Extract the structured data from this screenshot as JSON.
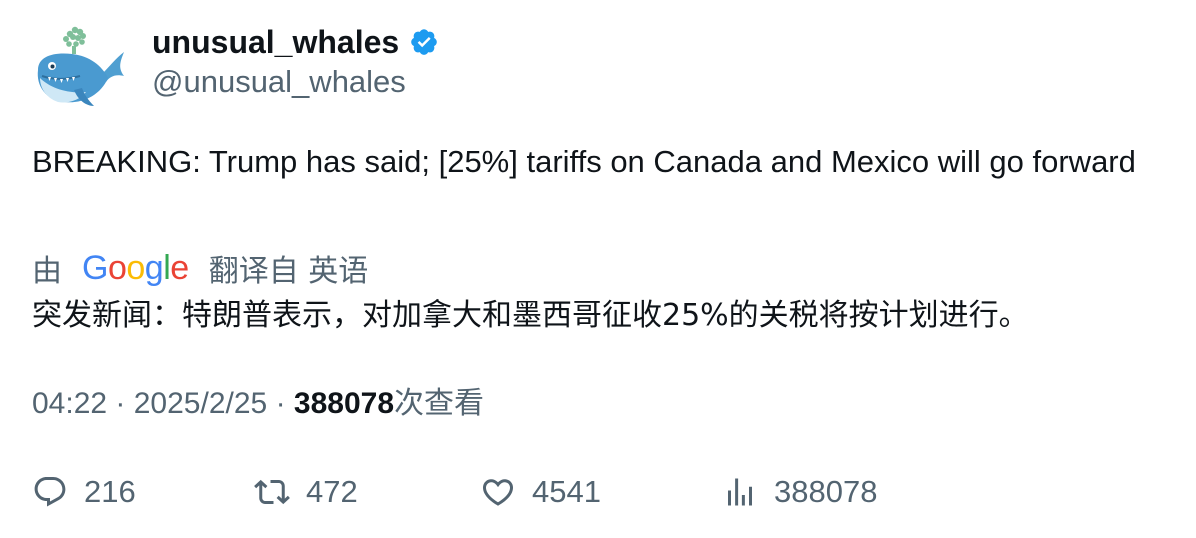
{
  "author": {
    "name": "unusual_whales",
    "handle": "@unusual_whales",
    "verified": true
  },
  "tweet": {
    "text": "BREAKING: Trump has said; [25%] tariffs on Canada and Mexico will go forward"
  },
  "translation": {
    "by_label": "由",
    "provider": "Google",
    "from_label": "翻译自 英语",
    "text": "突发新闻：特朗普表示，对加拿大和墨西哥征收25%的关税将按计划进行。"
  },
  "meta": {
    "time": "04:22",
    "separator": "·",
    "date": "2025/2/25",
    "views_count": "388078",
    "views_label": "次查看"
  },
  "actions": {
    "replies": "216",
    "retweets": "472",
    "likes": "4541",
    "views": "388078"
  },
  "colors": {
    "text_primary": "#0f1419",
    "text_secondary": "#536471",
    "verified_blue": "#1d9bf0",
    "google_blue": "#4285f4",
    "google_red": "#ea4335",
    "google_yellow": "#fbbc05",
    "google_green": "#34a853"
  },
  "icons": {
    "reply": "reply-icon",
    "retweet": "retweet-icon",
    "like": "heart-icon",
    "views": "analytics-icon",
    "verified": "verified-badge-icon",
    "avatar": "whale-avatar"
  }
}
